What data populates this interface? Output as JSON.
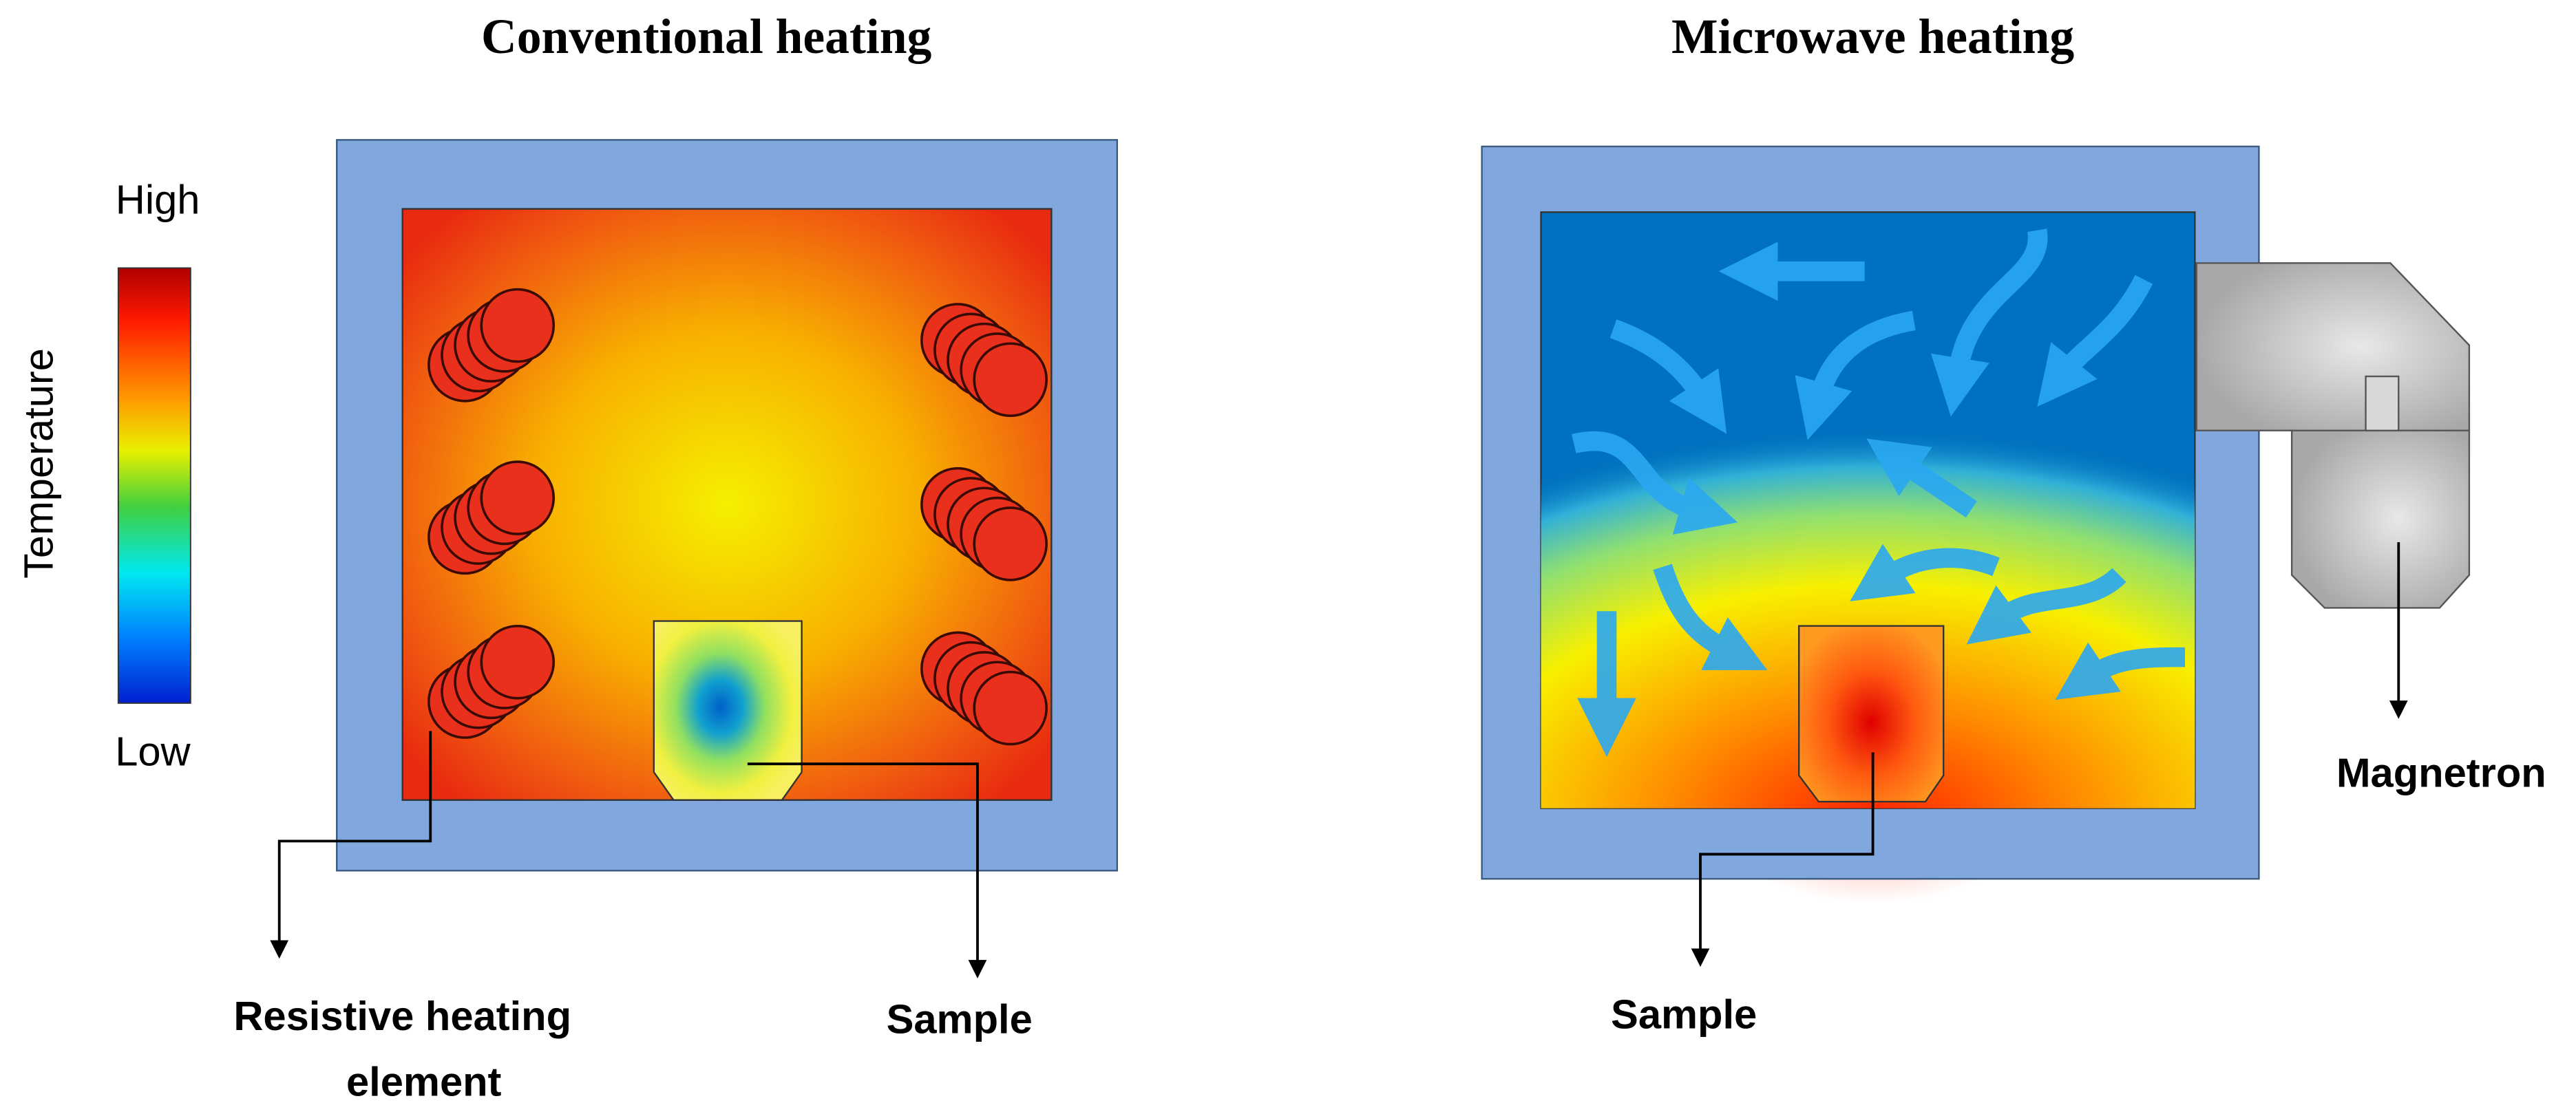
{
  "legend": {
    "title": "Temperature",
    "high": "High",
    "low": "Low"
  },
  "conventional": {
    "title": "Conventional heating",
    "heating_element": [
      "Resistive heating",
      "element"
    ],
    "sample": "Sample"
  },
  "microwave": {
    "title": "Microwave heating",
    "sample": "Sample",
    "magnetron": "Magnetron"
  }
}
